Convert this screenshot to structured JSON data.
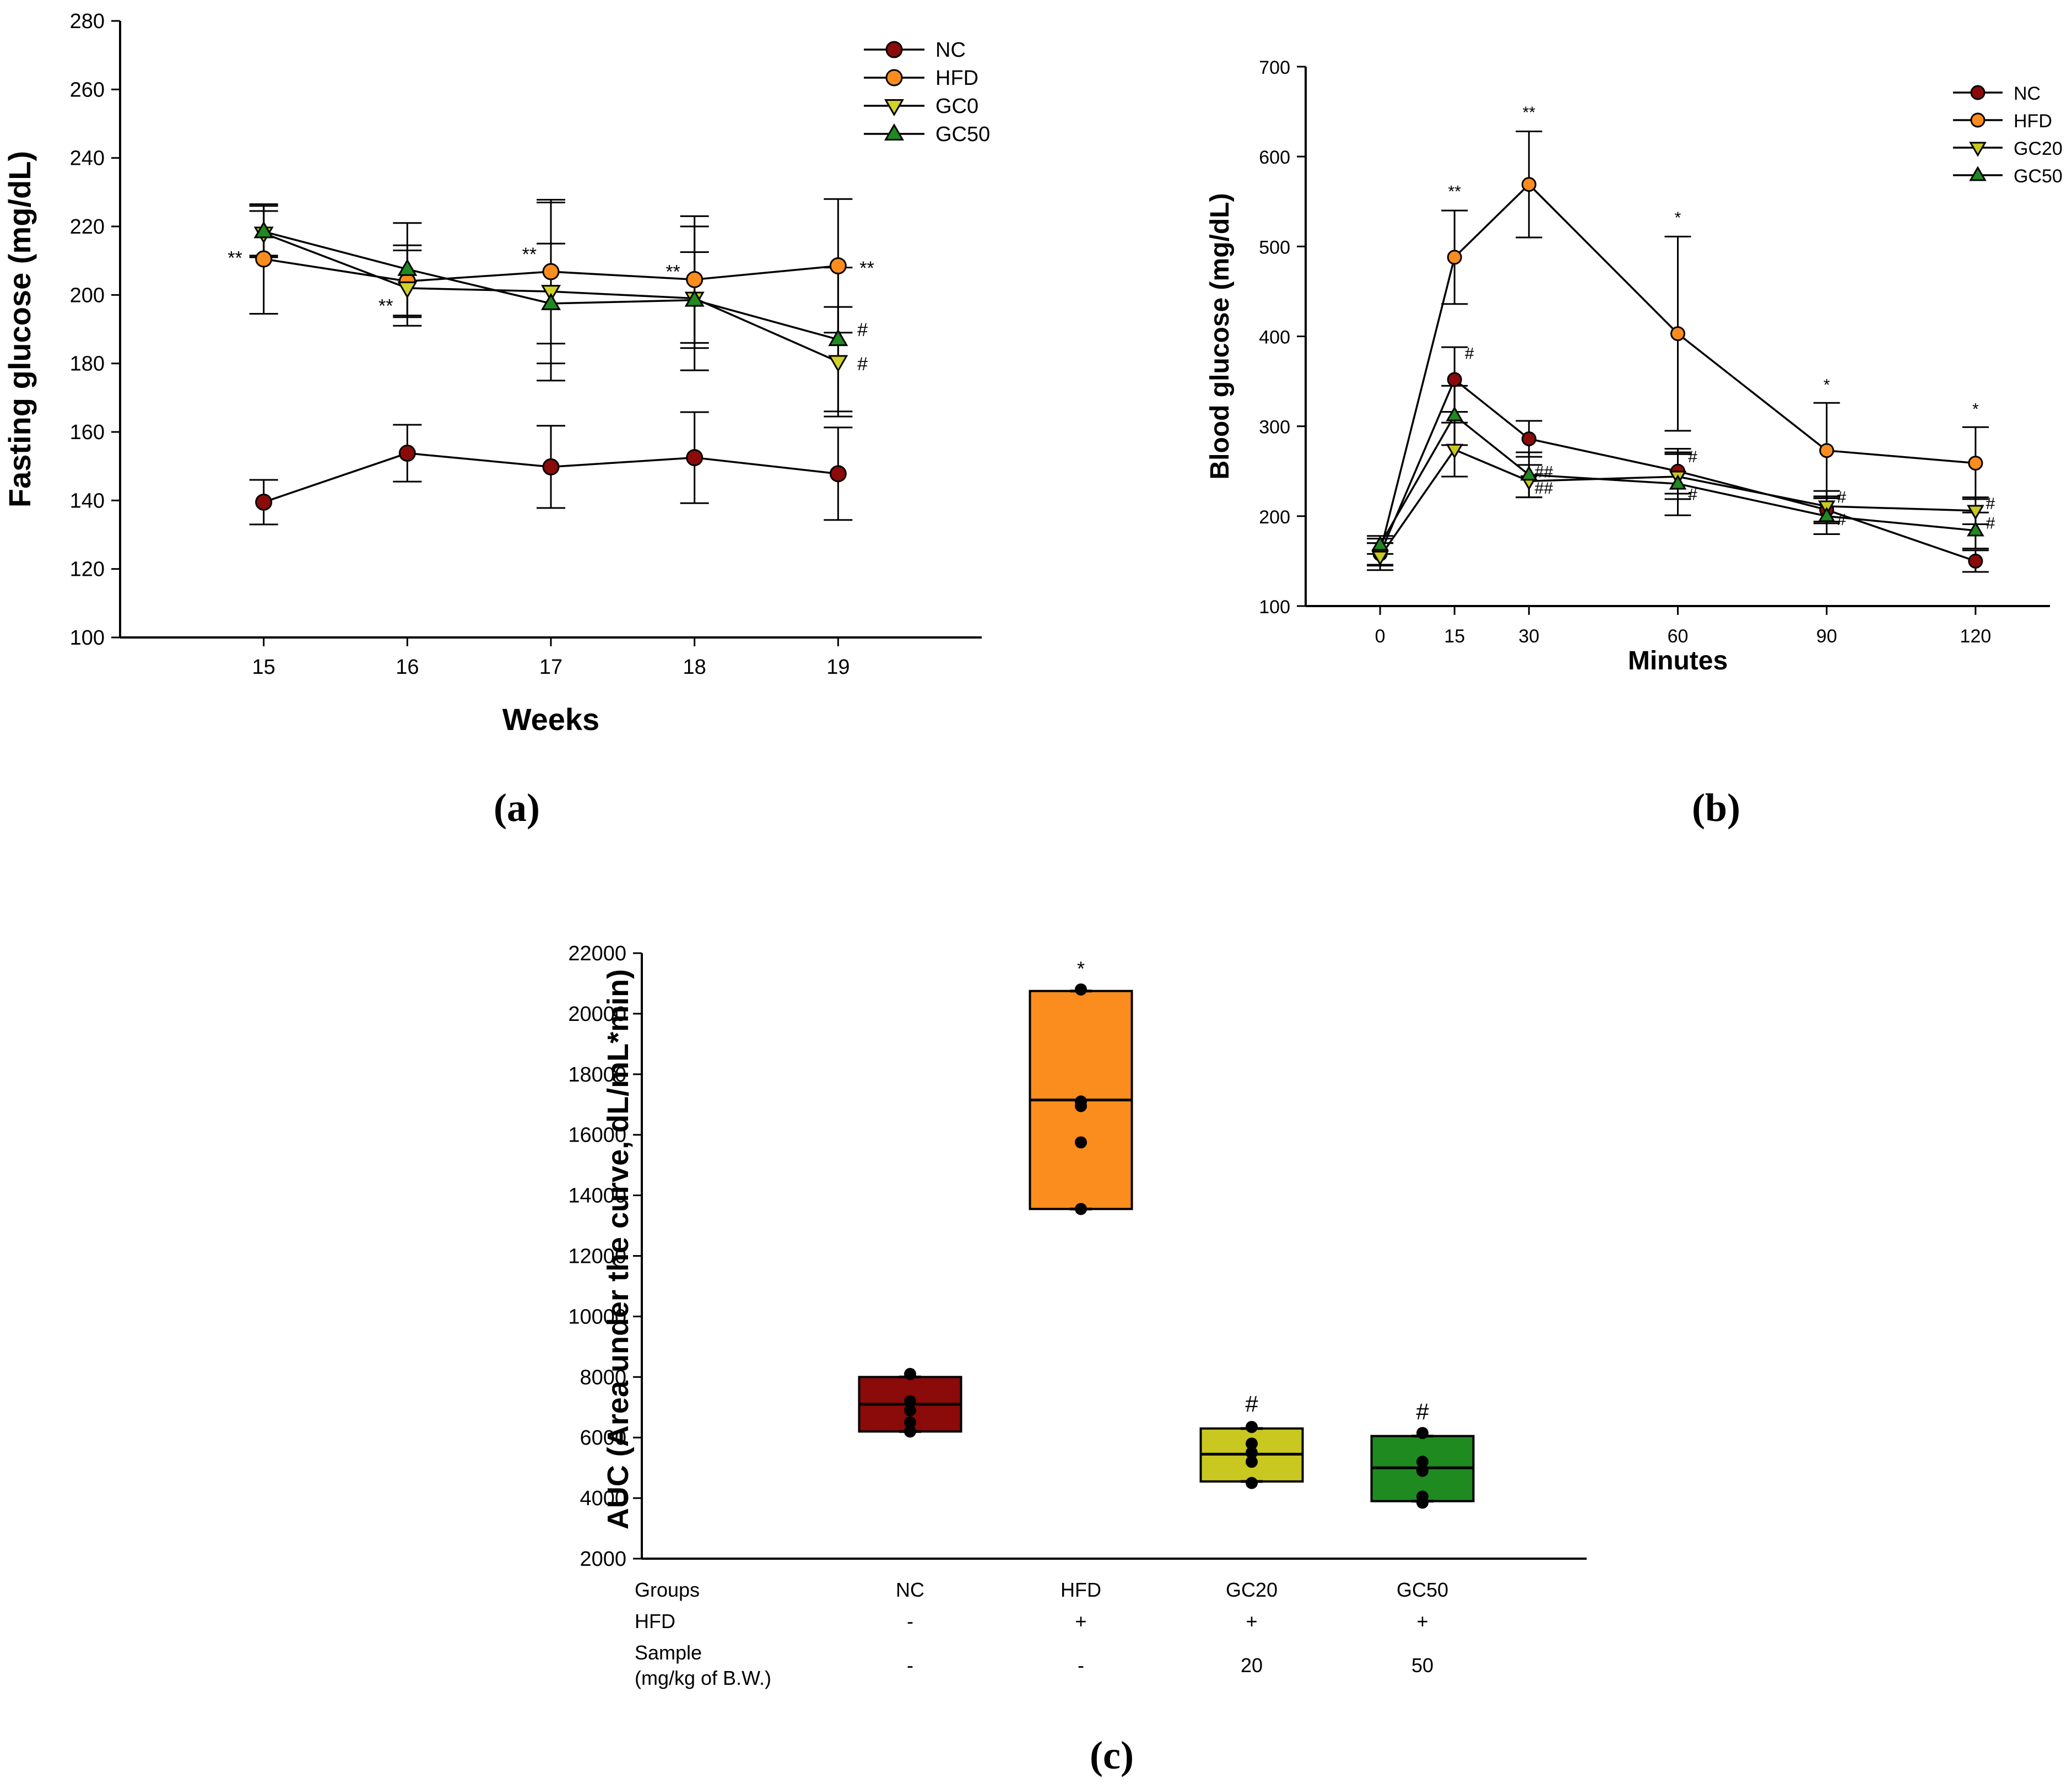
{
  "colors": {
    "NC": "#8b0a0a",
    "HFD": "#fb8c1e",
    "GC0": "#d0d22a",
    "GC20": "#c8c820",
    "GC50": "#1f8a1f",
    "axis": "#000000"
  },
  "chart_data": [
    {
      "id": "a",
      "panel_label": "(a)",
      "type": "line",
      "title": "",
      "xlabel": "Weeks",
      "ylabel": "Fasting glucose (mg/dL)",
      "x": [
        15,
        16,
        17,
        18,
        19
      ],
      "xlim": [
        14,
        20
      ],
      "ylim": [
        100,
        280
      ],
      "yticks": [
        100,
        120,
        140,
        160,
        180,
        200,
        220,
        240,
        260,
        280
      ],
      "xticks": [
        15,
        16,
        17,
        18,
        19
      ],
      "legend_position": "top-right",
      "series": [
        {
          "name": "NC",
          "marker": "circle",
          "values": [
            139.5,
            153.8,
            149.8,
            152.5,
            147.8
          ],
          "errors": [
            6.5,
            8.3,
            12,
            13.3,
            13.5
          ]
        },
        {
          "name": "HFD",
          "marker": "circle",
          "values": [
            210.5,
            204.0,
            206.8,
            204.5,
            208.5
          ],
          "errors": [
            16,
            10.5,
            21,
            18.5,
            19.5
          ]
        },
        {
          "name": "GC0",
          "marker": "triangle-down",
          "values": [
            218.0,
            202.0,
            201.0,
            199.0,
            180.5
          ],
          "errors": [
            6.5,
            11,
            26,
            21,
            16
          ]
        },
        {
          "name": "GC50",
          "marker": "triangle-up",
          "values": [
            218.5,
            207.5,
            197.5,
            198.5,
            187.0
          ],
          "errors": [
            7.5,
            13.5,
            17.5,
            14,
            21
          ]
        }
      ],
      "annotations": [
        {
          "text": "**",
          "x": 14.8,
          "y": 209
        },
        {
          "text": "**",
          "x": 15.85,
          "y": 195
        },
        {
          "text": "**",
          "x": 16.85,
          "y": 210
        },
        {
          "text": "**",
          "x": 17.85,
          "y": 205
        },
        {
          "text": "**",
          "x": 19.2,
          "y": 206
        },
        {
          "text": "#",
          "x": 19.17,
          "y": 188
        },
        {
          "text": "#",
          "x": 19.17,
          "y": 178
        }
      ]
    },
    {
      "id": "b",
      "panel_label": "(b)",
      "type": "line",
      "title": "",
      "xlabel": "Minutes",
      "ylabel": "Blood glucose (mg/dL)",
      "x": [
        0,
        15,
        30,
        60,
        90,
        120
      ],
      "xlim": [
        -15,
        135
      ],
      "ylim": [
        100,
        700
      ],
      "yticks": [
        100,
        200,
        300,
        400,
        500,
        600,
        700
      ],
      "xticks": [
        0,
        15,
        30,
        60,
        90,
        120
      ],
      "legend_position": "top-right",
      "series": [
        {
          "name": "NC",
          "marker": "circle",
          "values": [
            158,
            352,
            286,
            250,
            207,
            150
          ],
          "errors": [
            12,
            36,
            20,
            25,
            15,
            12
          ]
        },
        {
          "name": "HFD",
          "marker": "circle",
          "values": [
            160,
            488,
            569,
            403,
            273,
            259
          ],
          "errors": [
            15,
            52,
            59,
            108,
            53,
            40
          ]
        },
        {
          "name": "GC20",
          "marker": "triangle-down",
          "values": [
            155,
            274,
            239,
            244,
            211,
            206
          ],
          "errors": [
            15,
            30,
            18,
            25,
            17,
            15
          ]
        },
        {
          "name": "GC50",
          "marker": "triangle-up",
          "values": [
            168,
            312,
            246,
            236,
            200,
            184
          ],
          "errors": [
            10,
            33,
            25,
            35,
            20,
            20
          ]
        }
      ],
      "annotations": [
        {
          "text": "**",
          "x": 15,
          "y": 555
        },
        {
          "text": "**",
          "x": 30,
          "y": 643
        },
        {
          "text": "*",
          "x": 60,
          "y": 526
        },
        {
          "text": "*",
          "x": 90,
          "y": 340
        },
        {
          "text": "*",
          "x": 120,
          "y": 313
        },
        {
          "text": "#",
          "x": 18,
          "y": 375
        },
        {
          "text": "##",
          "x": 33,
          "y": 243
        },
        {
          "text": "##",
          "x": 33,
          "y": 225
        },
        {
          "text": "#",
          "x": 63,
          "y": 260
        },
        {
          "text": "#",
          "x": 63,
          "y": 218
        },
        {
          "text": "#",
          "x": 93,
          "y": 215
        },
        {
          "text": "#",
          "x": 93,
          "y": 190
        },
        {
          "text": "#",
          "x": 123,
          "y": 208
        },
        {
          "text": "#",
          "x": 123,
          "y": 186
        }
      ]
    },
    {
      "id": "c",
      "panel_label": "(c)",
      "type": "bar",
      "subtype": "box",
      "title": "",
      "xlabel": "",
      "ylabel": "AUC (Area under the curve, dL/mL*min)",
      "ylim": [
        2000,
        22000
      ],
      "yticks": [
        2000,
        4000,
        6000,
        8000,
        10000,
        12000,
        14000,
        16000,
        18000,
        20000,
        22000
      ],
      "categories": [
        "NC",
        "HFD",
        "GC20",
        "GC50"
      ],
      "boxes": [
        {
          "group": "NC",
          "q1": 6200,
          "median": 7100,
          "q3": 8000,
          "points": [
            6200,
            6500,
            6900,
            7200,
            8100
          ],
          "annotation": ""
        },
        {
          "group": "HFD",
          "q1": 13550,
          "median": 17150,
          "q3": 20750,
          "points": [
            13550,
            15750,
            16950,
            17100,
            20800
          ],
          "annotation": "*"
        },
        {
          "group": "GC20",
          "q1": 4550,
          "median": 5450,
          "q3": 6300,
          "points": [
            4500,
            5200,
            5500,
            5800,
            6350
          ],
          "annotation": "#"
        },
        {
          "group": "GC50",
          "q1": 3900,
          "median": 5000,
          "q3": 6050,
          "points": [
            3850,
            4050,
            4900,
            5200,
            6150
          ],
          "annotation": "#"
        }
      ],
      "table": {
        "row_labels": [
          "Groups",
          "HFD",
          "Sample"
        ],
        "sample_sub_label": "(mg/kg of B.W.)",
        "groups": [
          "NC",
          "HFD",
          "GC20",
          "GC50"
        ],
        "hfd": [
          "-",
          "+",
          "+",
          "+"
        ],
        "sample": [
          "-",
          "-",
          "20",
          "50"
        ]
      }
    }
  ]
}
